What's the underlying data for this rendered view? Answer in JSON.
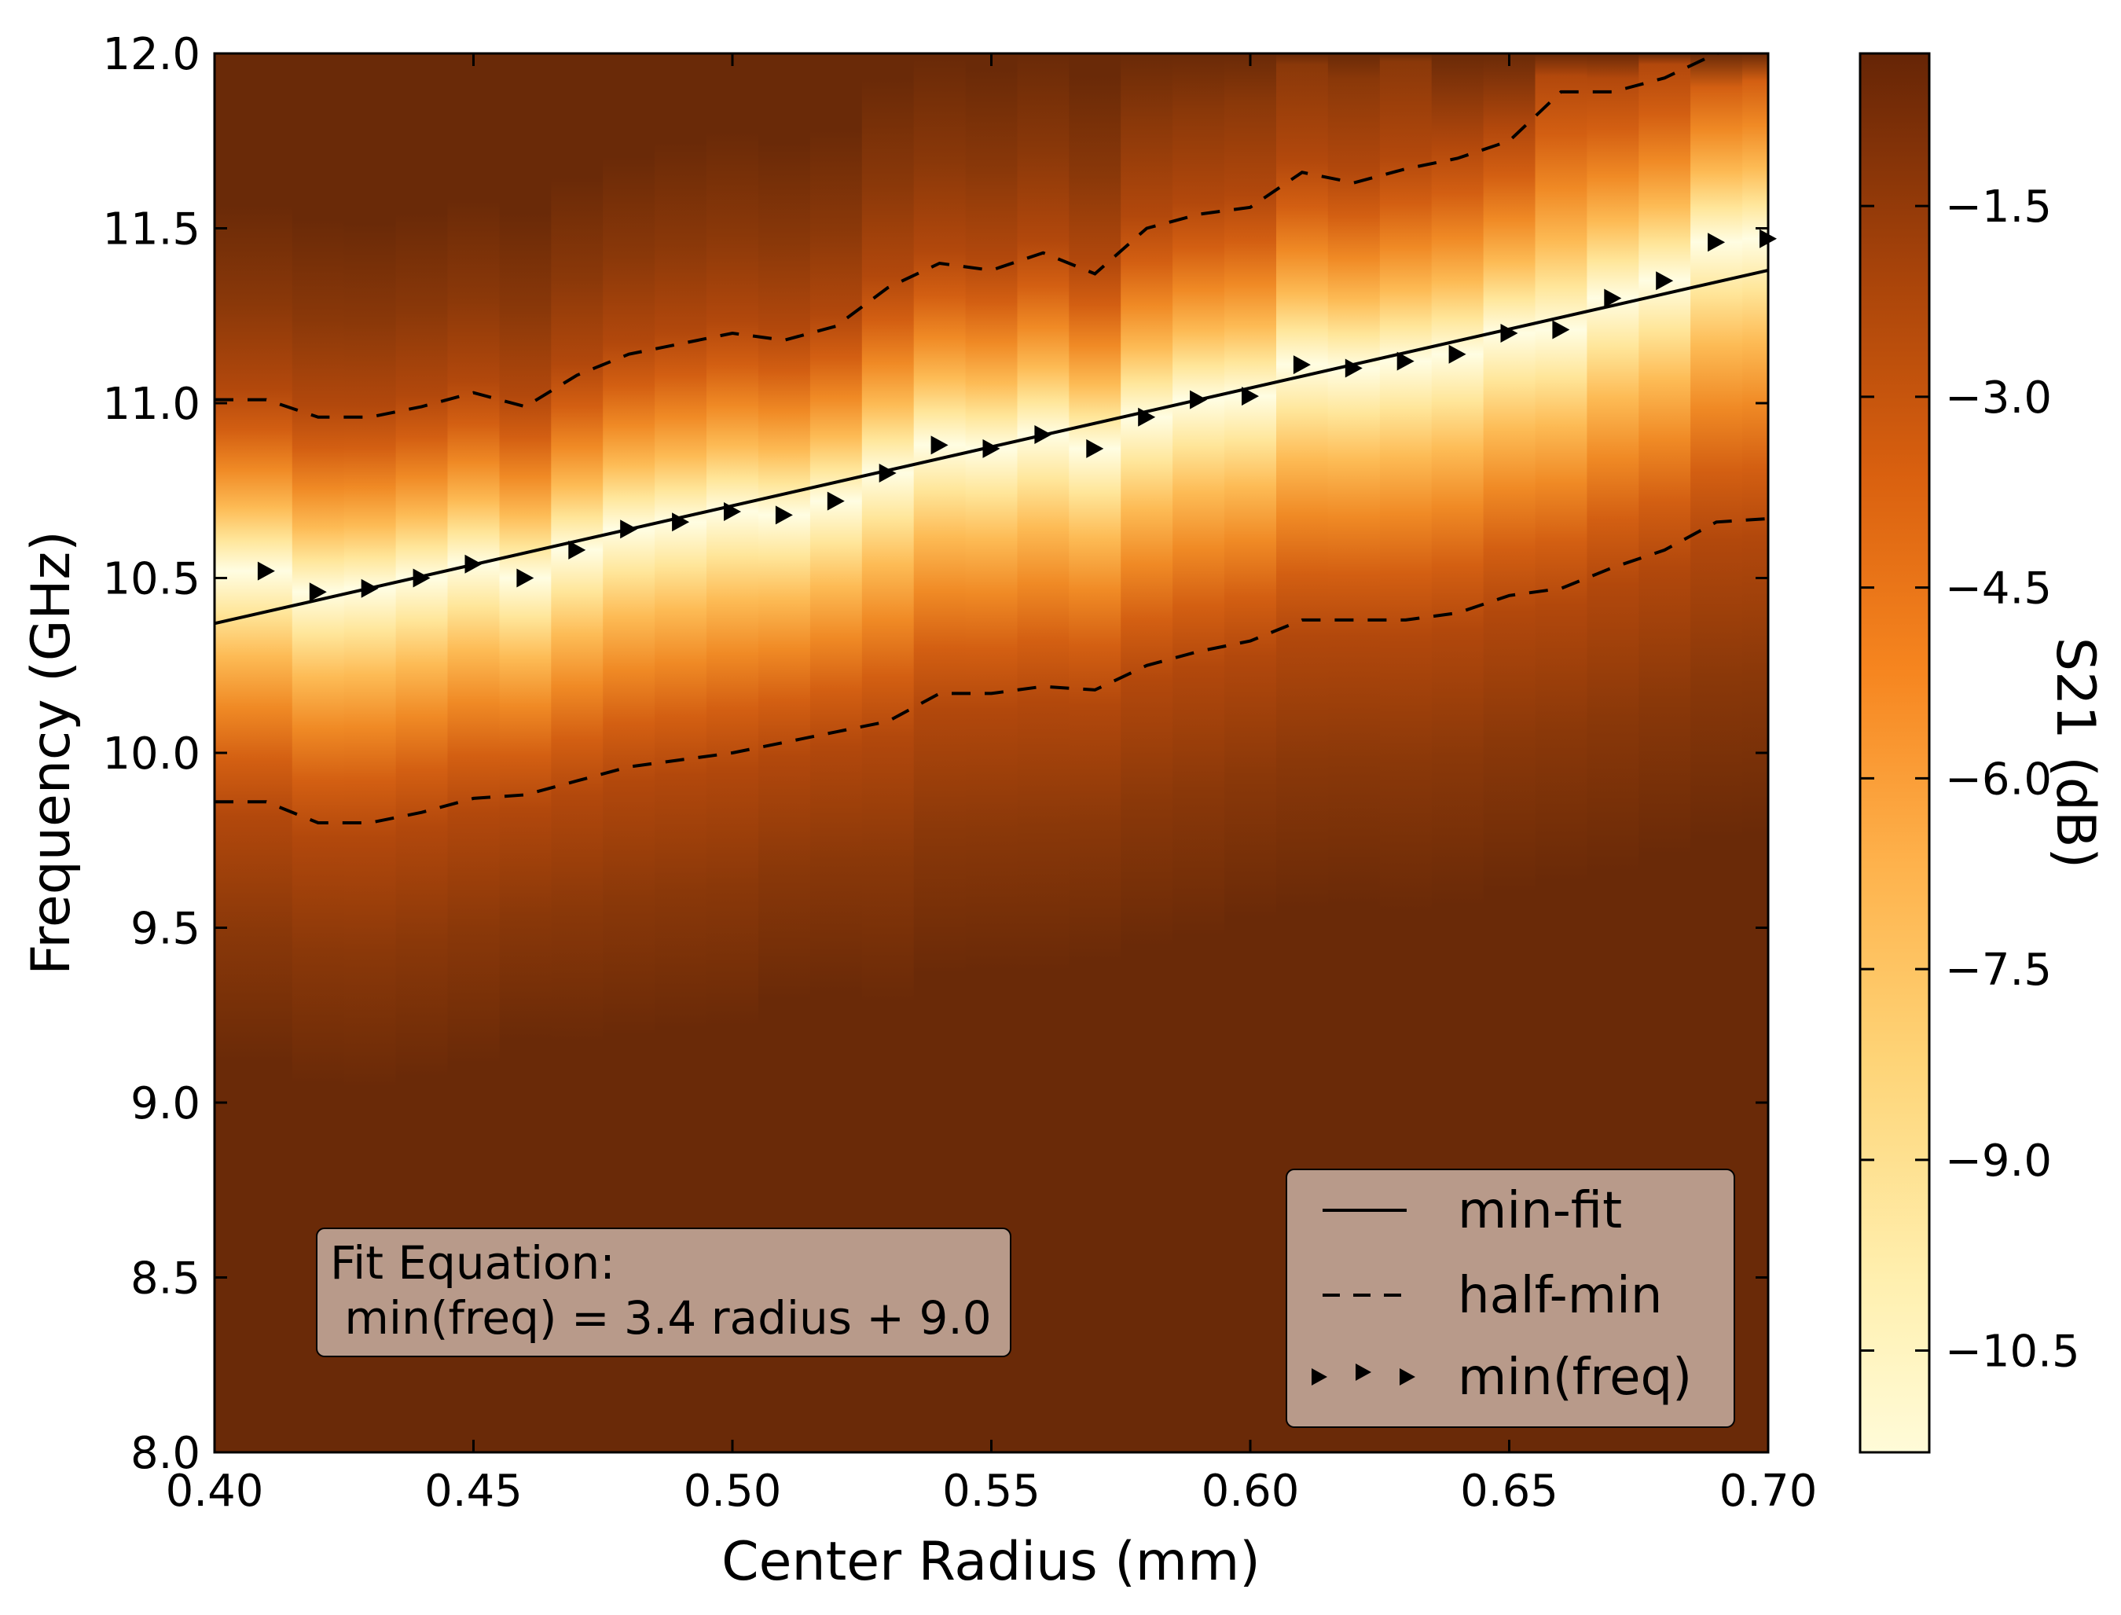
{
  "chart_data": {
    "type": "heatmap",
    "xlabel": "Center Radius (mm)",
    "ylabel": "Frequency (GHz)",
    "xlim": [
      0.4,
      0.7
    ],
    "ylim": [
      8.0,
      12.0
    ],
    "xticks": [
      0.4,
      0.45,
      0.5,
      0.55,
      0.6,
      0.65,
      0.7
    ],
    "xtick_labels": [
      "0.40",
      "0.45",
      "0.50",
      "0.55",
      "0.60",
      "0.65",
      "0.70"
    ],
    "yticks": [
      8.0,
      8.5,
      9.0,
      9.5,
      10.0,
      10.5,
      11.0,
      11.5,
      12.0
    ],
    "ytick_labels": [
      "8.0",
      "8.5",
      "9.0",
      "9.5",
      "10.0",
      "10.5",
      "11.0",
      "11.5",
      "12.0"
    ],
    "colorbar": {
      "label": "S21 (dB)",
      "range": [
        -11.3,
        -0.3
      ],
      "ticks": [
        -1.5,
        -3.0,
        -4.5,
        -6.0,
        -7.5,
        -9.0,
        -10.5
      ],
      "tick_labels": [
        "−1.5",
        "−3.0",
        "−4.5",
        "−6.0",
        "−7.5",
        "−9.0",
        "−10.5"
      ],
      "colormap": "YlOrBr (reversed)"
    },
    "radius_bins": [
      0.4,
      0.41,
      0.42,
      0.43,
      0.44,
      0.45,
      0.46,
      0.47,
      0.48,
      0.49,
      0.5,
      0.51,
      0.52,
      0.53,
      0.54,
      0.55,
      0.56,
      0.57,
      0.58,
      0.59,
      0.6,
      0.61,
      0.62,
      0.63,
      0.64,
      0.65,
      0.66,
      0.67,
      0.68,
      0.69,
      0.7
    ],
    "series": [
      {
        "name": "min-fit",
        "style": "solid",
        "slope": 3.4,
        "intercept": 9.0,
        "x": [
          0.4,
          0.7
        ],
        "y": [
          10.37,
          11.38
        ]
      },
      {
        "name": "half-min",
        "style": "dashed",
        "upper": {
          "x": [
            0.4,
            0.41,
            0.42,
            0.43,
            0.44,
            0.45,
            0.46,
            0.47,
            0.48,
            0.49,
            0.5,
            0.51,
            0.52,
            0.53,
            0.54,
            0.55,
            0.56,
            0.57,
            0.58,
            0.59,
            0.6,
            0.61,
            0.62,
            0.63,
            0.64,
            0.65,
            0.66,
            0.67,
            0.68,
            0.69,
            0.7
          ],
          "y": [
            11.01,
            11.01,
            10.96,
            10.96,
            10.99,
            11.03,
            10.99,
            11.08,
            11.14,
            11.17,
            11.2,
            11.18,
            11.22,
            11.33,
            11.4,
            11.38,
            11.43,
            11.37,
            11.5,
            11.54,
            11.56,
            11.66,
            11.63,
            11.67,
            11.7,
            11.75,
            11.89,
            11.89,
            11.93,
            12.0,
            12.02
          ]
        },
        "lower": {
          "x": [
            0.4,
            0.41,
            0.42,
            0.43,
            0.44,
            0.45,
            0.46,
            0.47,
            0.48,
            0.49,
            0.5,
            0.51,
            0.52,
            0.53,
            0.54,
            0.55,
            0.56,
            0.57,
            0.58,
            0.59,
            0.6,
            0.61,
            0.62,
            0.63,
            0.64,
            0.65,
            0.66,
            0.67,
            0.68,
            0.69,
            0.7
          ],
          "y": [
            9.86,
            9.86,
            9.8,
            9.8,
            9.83,
            9.87,
            9.88,
            9.92,
            9.96,
            9.98,
            10.0,
            10.03,
            10.06,
            10.09,
            10.17,
            10.17,
            10.19,
            10.18,
            10.25,
            10.29,
            10.32,
            10.38,
            10.38,
            10.38,
            10.4,
            10.45,
            10.47,
            10.53,
            10.58,
            10.66,
            10.67
          ]
        }
      },
      {
        "name": "min(freq)",
        "style": "triangle markers",
        "x": [
          0.41,
          0.42,
          0.43,
          0.44,
          0.45,
          0.46,
          0.47,
          0.48,
          0.49,
          0.5,
          0.51,
          0.52,
          0.53,
          0.54,
          0.55,
          0.56,
          0.57,
          0.58,
          0.59,
          0.6,
          0.61,
          0.62,
          0.63,
          0.64,
          0.65,
          0.66,
          0.67,
          0.68,
          0.69,
          0.7
        ],
        "y": [
          10.52,
          10.46,
          10.47,
          10.5,
          10.54,
          10.5,
          10.58,
          10.64,
          10.66,
          10.69,
          10.68,
          10.72,
          10.8,
          10.88,
          10.87,
          10.91,
          10.87,
          10.96,
          11.01,
          11.02,
          11.11,
          11.1,
          11.12,
          11.14,
          11.2,
          11.21,
          11.3,
          11.35,
          11.46,
          11.47
        ]
      }
    ],
    "legend": {
      "position": "lower right",
      "entries": [
        "min-fit",
        "half-min",
        "min(freq)"
      ]
    },
    "annotation": {
      "line1": "Fit Equation:",
      "line2": " min(freq) = 3.4 radius + 9.0",
      "position": "lower left"
    },
    "colors": {
      "background_dark": "#6a2a08",
      "peak_light": "#ffffe0",
      "legend_box": "#b89a8a",
      "line": "#000000"
    }
  }
}
